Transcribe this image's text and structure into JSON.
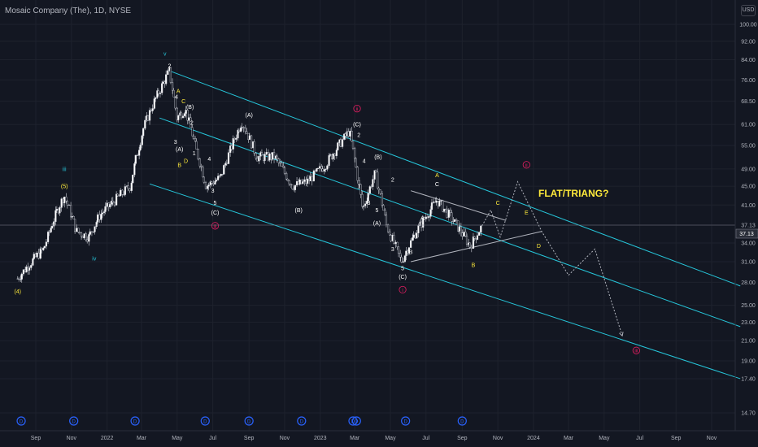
{
  "header": {
    "title": "Mosaic Company (The), 1D, NYSE",
    "currency": "USD"
  },
  "price_tag": "37.13",
  "annotation_text": "FLAT/TRIANG?",
  "colors": {
    "bg": "#131722",
    "channel": "#26c6da",
    "up": "#ffffff",
    "down": "#131722",
    "wave_white": "#ffffff",
    "wave_yellow": "#ffeb3b",
    "wave_cyan": "#26c6da",
    "wave_red": "#e91e63",
    "event": "#2962ff"
  },
  "chart_data": {
    "type": "candlestick",
    "title": "Mosaic Company (The), 1D, NYSE",
    "y_scale": "log",
    "y_ticks": [
      "100.00",
      "92.00",
      "84.00",
      "76.00",
      "68.50",
      "61.00",
      "55.00",
      "49.00",
      "45.00",
      "41.00",
      "37.13",
      "34.00",
      "31.00",
      "28.00",
      "25.00",
      "23.00",
      "21.00",
      "19.00",
      "17.40",
      "14.70"
    ],
    "x_ticks": [
      "Sep",
      "Nov",
      "2022",
      "Mar",
      "May",
      "Jul",
      "Sep",
      "Nov",
      "2023",
      "Mar",
      "May",
      "Jul",
      "Sep",
      "Nov",
      "2024",
      "Mar",
      "May",
      "Jul",
      "Sep",
      "Nov"
    ],
    "price_path": [
      {
        "date": "2021-08-01",
        "price": 28.5
      },
      {
        "date": "2021-08-25",
        "price": 31
      },
      {
        "date": "2021-09-15",
        "price": 33
      },
      {
        "date": "2021-10-05",
        "price": 39
      },
      {
        "date": "2021-10-20",
        "price": 43
      },
      {
        "date": "2021-11-10",
        "price": 36
      },
      {
        "date": "2021-12-01",
        "price": 35
      },
      {
        "date": "2021-12-20",
        "price": 39
      },
      {
        "date": "2022-01-15",
        "price": 42
      },
      {
        "date": "2022-02-10",
        "price": 45
      },
      {
        "date": "2022-03-05",
        "price": 60
      },
      {
        "date": "2022-03-20",
        "price": 67
      },
      {
        "date": "2022-04-18",
        "price": 79.3
      },
      {
        "date": "2022-05-01",
        "price": 63
      },
      {
        "date": "2022-05-15",
        "price": 66
      },
      {
        "date": "2022-06-01",
        "price": 55
      },
      {
        "date": "2022-06-20",
        "price": 45
      },
      {
        "date": "2022-07-15",
        "price": 47
      },
      {
        "date": "2022-08-20",
        "price": 62
      },
      {
        "date": "2022-09-15",
        "price": 52
      },
      {
        "date": "2022-10-15",
        "price": 52
      },
      {
        "date": "2022-11-15",
        "price": 45
      },
      {
        "date": "2022-12-10",
        "price": 46
      },
      {
        "date": "2023-01-10",
        "price": 50
      },
      {
        "date": "2023-02-20",
        "price": 59
      },
      {
        "date": "2023-03-15",
        "price": 40
      },
      {
        "date": "2023-04-05",
        "price": 48
      },
      {
        "date": "2023-04-25",
        "price": 37
      },
      {
        "date": "2023-05-20",
        "price": 31
      },
      {
        "date": "2023-06-15",
        "price": 36
      },
      {
        "date": "2023-07-20",
        "price": 42
      },
      {
        "date": "2023-08-10",
        "price": 39
      },
      {
        "date": "2023-08-30",
        "price": 36
      },
      {
        "date": "2023-09-15",
        "price": 33.5
      },
      {
        "date": "2023-10-05",
        "price": 37
      }
    ],
    "projection": [
      {
        "date": "2023-10-05",
        "price": 37
      },
      {
        "date": "2023-10-20",
        "price": 40
      },
      {
        "date": "2023-11-05",
        "price": 35
      },
      {
        "date": "2023-12-05",
        "price": 46
      },
      {
        "date": "2024-01-15",
        "price": 36
      },
      {
        "date": "2024-03-01",
        "price": 29
      },
      {
        "date": "2024-04-15",
        "price": 33
      },
      {
        "date": "2024-06-01",
        "price": 21.5
      }
    ],
    "wave_labels": [
      {
        "text": "(4)",
        "color": "yellow",
        "date": "2021-08-01",
        "price": 26.8
      },
      {
        "text": "(5)",
        "color": "yellow",
        "date": "2021-10-20",
        "price": 45
      },
      {
        "text": "iii",
        "color": "cyan",
        "date": "2021-10-20",
        "price": 49
      },
      {
        "text": "iv",
        "color": "cyan",
        "date": "2021-12-10",
        "price": 31.5
      },
      {
        "text": "v",
        "color": "cyan",
        "date": "2022-04-10",
        "price": 86.5
      },
      {
        "text": "2",
        "color": "white",
        "date": "2022-04-18",
        "price": 81.5
      },
      {
        "text": "4",
        "color": "white",
        "date": "2022-04-30",
        "price": 70
      },
      {
        "text": "A",
        "color": "yellow",
        "date": "2022-05-03",
        "price": 72
      },
      {
        "text": "C",
        "color": "yellow",
        "date": "2022-05-12",
        "price": 68.5
      },
      {
        "text": "(B)",
        "color": "white",
        "date": "2022-05-23",
        "price": 66.5
      },
      {
        "text": "2",
        "color": "white",
        "date": "2022-05-26",
        "price": 61.5
      },
      {
        "text": "3",
        "color": "white",
        "date": "2022-04-28",
        "price": 56
      },
      {
        "text": "(A)",
        "color": "white",
        "date": "2022-05-05",
        "price": 54
      },
      {
        "text": "1",
        "color": "white",
        "date": "2022-05-30",
        "price": 53
      },
      {
        "text": "B",
        "color": "yellow",
        "date": "2022-05-05",
        "price": 50
      },
      {
        "text": "D",
        "color": "yellow",
        "date": "2022-05-16",
        "price": 51
      },
      {
        "text": "4",
        "color": "white",
        "date": "2022-06-25",
        "price": 51.5
      },
      {
        "text": "3",
        "color": "white",
        "date": "2022-07-01",
        "price": 44
      },
      {
        "text": "5",
        "color": "white",
        "date": "2022-07-05",
        "price": 41.5
      },
      {
        "text": "(C)",
        "color": "white",
        "date": "2022-07-05",
        "price": 39.5
      },
      {
        "text": "iii",
        "color": "red",
        "date": "2022-07-05",
        "price": 37
      },
      {
        "text": "(A)",
        "color": "white",
        "date": "2022-09-01",
        "price": 64
      },
      {
        "text": "(B)",
        "color": "white",
        "date": "2022-11-25",
        "price": 40
      },
      {
        "text": "ii",
        "color": "red",
        "date": "2023-03-05",
        "price": 66
      },
      {
        "text": "(C)",
        "color": "white",
        "date": "2023-03-05",
        "price": 61
      },
      {
        "text": "2",
        "color": "white",
        "date": "2023-03-08",
        "price": 58
      },
      {
        "text": "4",
        "color": "white",
        "date": "2023-03-17",
        "price": 51
      },
      {
        "text": "(B)",
        "color": "white",
        "date": "2023-04-10",
        "price": 52
      },
      {
        "text": "2",
        "color": "white",
        "date": "2023-05-05",
        "price": 46.5
      },
      {
        "text": "3",
        "color": "white",
        "date": "2023-03-25",
        "price": 41.5
      },
      {
        "text": "1",
        "color": "white",
        "date": "2023-03-08",
        "price": 45
      },
      {
        "text": "5",
        "color": "white",
        "date": "2023-04-08",
        "price": 40
      },
      {
        "text": "(A)",
        "color": "white",
        "date": "2023-04-08",
        "price": 37.5
      },
      {
        "text": "A",
        "color": "white",
        "date": "2023-06-25",
        "price": 38.5
      },
      {
        "text": "3",
        "color": "white",
        "date": "2023-05-05",
        "price": 33
      },
      {
        "text": "B",
        "color": "white",
        "date": "2023-06-05",
        "price": 32.5
      },
      {
        "text": "5",
        "color": "white",
        "date": "2023-05-22",
        "price": 30
      },
      {
        "text": "(C)",
        "color": "white",
        "date": "2023-05-22",
        "price": 28.8
      },
      {
        "text": "i",
        "color": "red",
        "date": "2023-05-22",
        "price": 27
      },
      {
        "text": "A",
        "color": "yellow",
        "date": "2023-07-20",
        "price": 47.5
      },
      {
        "text": "C",
        "color": "white",
        "date": "2023-07-20",
        "price": 45.5
      },
      {
        "text": "C",
        "color": "yellow",
        "date": "2023-11-01",
        "price": 41.5
      },
      {
        "text": "E",
        "color": "yellow",
        "date": "2023-12-20",
        "price": 39.5
      },
      {
        "text": "D",
        "color": "yellow",
        "date": "2024-01-10",
        "price": 33.5
      },
      {
        "text": "B",
        "color": "yellow",
        "date": "2023-09-20",
        "price": 30.5
      },
      {
        "text": "ii",
        "color": "red",
        "date": "2023-12-20",
        "price": 50
      },
      {
        "text": "iii",
        "color": "red",
        "date": "2024-06-25",
        "price": 20
      }
    ],
    "event_markers": [
      {
        "date": "2021-08-07",
        "label": "D"
      },
      {
        "date": "2021-11-05",
        "label": "D"
      },
      {
        "date": "2022-02-18",
        "label": "D"
      },
      {
        "date": "2022-06-18",
        "label": "D"
      },
      {
        "date": "2022-09-01",
        "label": "D"
      },
      {
        "date": "2022-11-30",
        "label": "D"
      },
      {
        "date": "2023-02-26",
        "label": "D"
      },
      {
        "date": "2023-03-04",
        "label": "D"
      },
      {
        "date": "2023-05-27",
        "label": "D"
      },
      {
        "date": "2023-09-01",
        "label": "D"
      }
    ],
    "channel_lines": [
      {
        "from": {
          "date": "2022-04-18",
          "price": 79.5
        },
        "to": {
          "date": "2024-12-20",
          "price": 27.5
        }
      },
      {
        "from": {
          "date": "2022-04-01",
          "price": 63
        },
        "to": {
          "date": "2024-12-20",
          "price": 22.5
        }
      },
      {
        "from": {
          "date": "2022-03-15",
          "price": 45.5
        },
        "to": {
          "date": "2024-12-20",
          "price": 17.4
        }
      }
    ],
    "triangle_lines": [
      {
        "from": {
          "date": "2023-06-05",
          "price": 44
        },
        "to": {
          "date": "2023-11-15",
          "price": 38
        }
      },
      {
        "from": {
          "date": "2023-06-05",
          "price": 31
        },
        "to": {
          "date": "2024-01-15",
          "price": 36
        }
      }
    ],
    "current_price": 37.13
  }
}
